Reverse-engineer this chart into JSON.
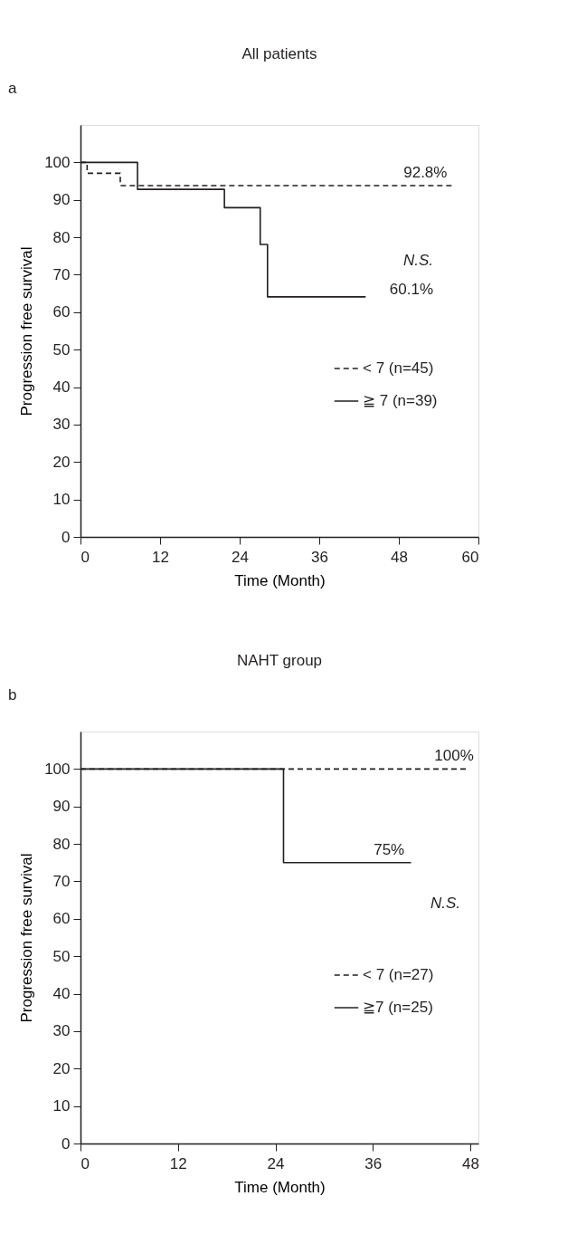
{
  "chart_data": [
    {
      "type": "step",
      "title": "All patients",
      "xlabel": "Time (Month)",
      "ylabel": "Progression free survival",
      "xlim": [
        0,
        60
      ],
      "xticks": [
        0,
        12,
        24,
        36,
        48,
        60
      ],
      "ylim": [
        0,
        110
      ],
      "yticks": [
        0,
        10,
        20,
        30,
        40,
        50,
        60,
        70,
        80,
        90,
        100
      ],
      "grid": false,
      "legend": "right",
      "marker": "none",
      "annotations": [
        "a",
        {
          "text": "92.8%",
          "x": 52,
          "y": 93.8
        },
        "N.S.",
        "60.1%"
      ],
      "series": [
        {
          "name": "< 7 (n=45)",
          "color": "#231f20",
          "line_style": "dashed",
          "x": [
            0,
            1,
            6,
            56
          ],
          "values": [
            100,
            97.1,
            93.8,
            93.8
          ]
        },
        {
          "name": "≧ 7 (n=39)",
          "color": "#231f20",
          "line_style": "solid",
          "x": [
            0,
            8.6,
            21.7,
            27.1,
            28.2,
            43
          ],
          "values": [
            100,
            92.8,
            87.9,
            78.1,
            64.1,
            64.1
          ]
        }
      ]
    },
    {
      "type": "step",
      "title": "NAHT group",
      "xlabel": "Time (Month)",
      "ylabel": "Progression free survival",
      "xlim": [
        0,
        49
      ],
      "xticks": [
        0,
        12,
        24,
        36,
        48
      ],
      "ylim": [
        0,
        110
      ],
      "yticks": [
        0,
        10,
        20,
        30,
        40,
        50,
        60,
        70,
        80,
        90,
        100
      ],
      "grid": false,
      "legend": "right",
      "marker": "none",
      "annotations": [
        "b",
        {
          "text": "100%",
          "x": 46,
          "y": 100
        },
        {
          "text": "75%",
          "x": 38,
          "y": 75
        },
        "N.S."
      ],
      "series": [
        {
          "name": "< 7 (n=27)",
          "color": "#231f20",
          "line_style": "dashed",
          "x": [
            0,
            47.5
          ],
          "values": [
            100,
            100
          ]
        },
        {
          "name": "≧7 (n=25)",
          "color": "#231f20",
          "line_style": "solid",
          "x": [
            0,
            25,
            40.7
          ],
          "values": [
            100,
            75,
            75
          ]
        }
      ]
    }
  ]
}
